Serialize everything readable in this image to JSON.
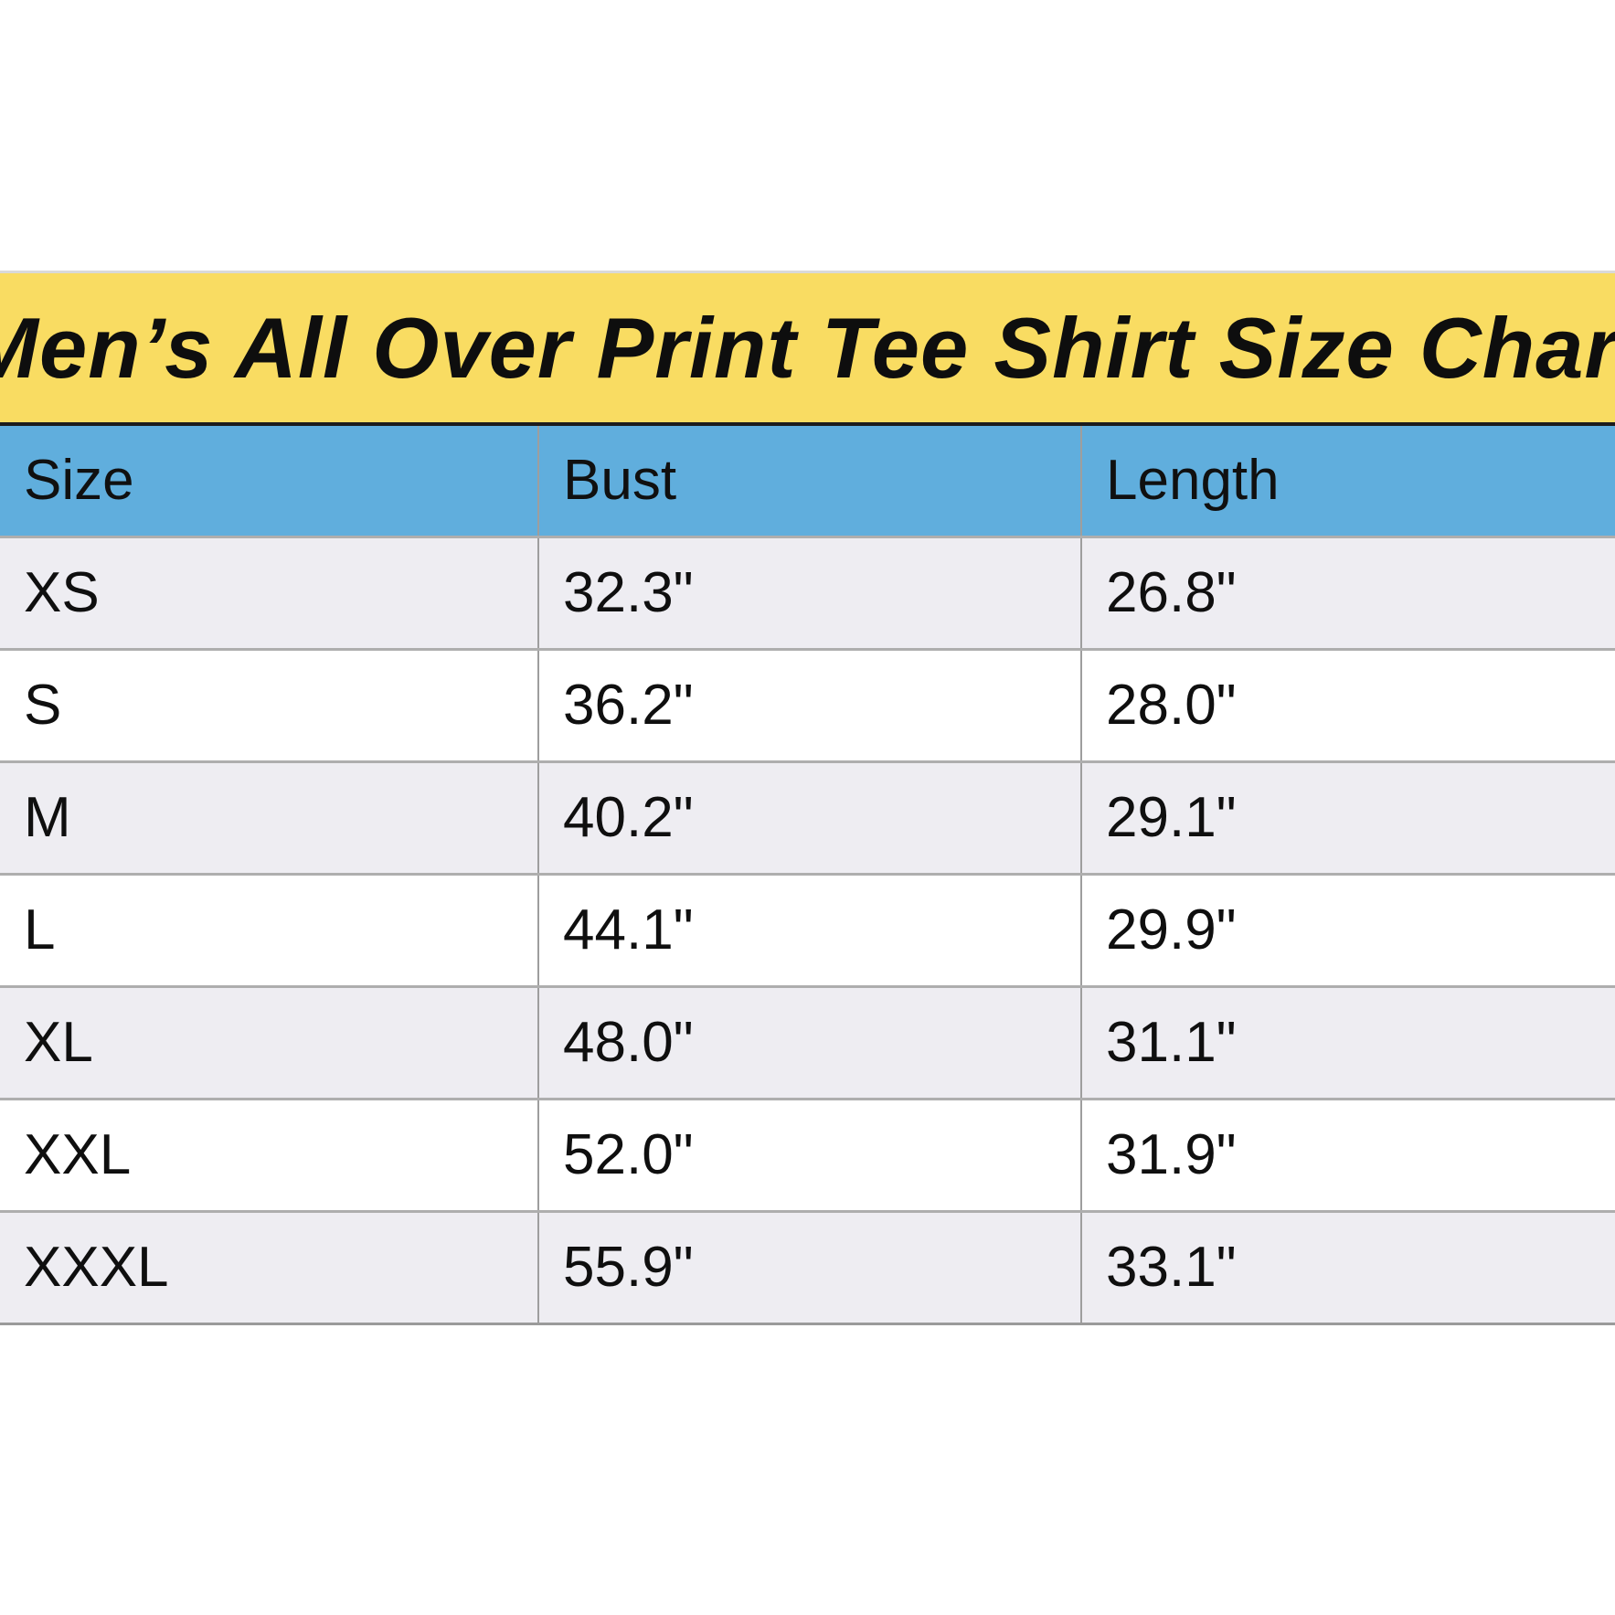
{
  "chart_data": {
    "type": "table",
    "title": "Men’s All Over Print Tee Shirt Size Chart",
    "columns": [
      "Size",
      "Bust",
      "Length"
    ],
    "rows": [
      {
        "size": "XS",
        "bust": "32.3\"",
        "length": "26.8\""
      },
      {
        "size": "S",
        "bust": "36.2\"",
        "length": "28.0\""
      },
      {
        "size": "M",
        "bust": "40.2\"",
        "length": "29.1\""
      },
      {
        "size": "L",
        "bust": "44.1\"",
        "length": "29.9\""
      },
      {
        "size": "XL",
        "bust": "48.0\"",
        "length": "31.1\""
      },
      {
        "size": "XXL",
        "bust": "52.0\"",
        "length": "31.9\""
      },
      {
        "size": "XXXL",
        "bust": "55.9\"",
        "length": "33.1\""
      }
    ],
    "layout_hints": {
      "header_position": "top",
      "row_striping": "alternating gray/white starting gray",
      "grid": "vertical column dividers and horizontal row separators"
    }
  },
  "colors": {
    "banner_background": "#F9DC62",
    "banner_underline": "#1c1c1c",
    "header_background": "#60AEDD",
    "striped_row_background": "#EEEDF2",
    "plain_row_background": "#FFFFFF",
    "divider": "#9e9e9e",
    "text": "#0f0f0f"
  }
}
